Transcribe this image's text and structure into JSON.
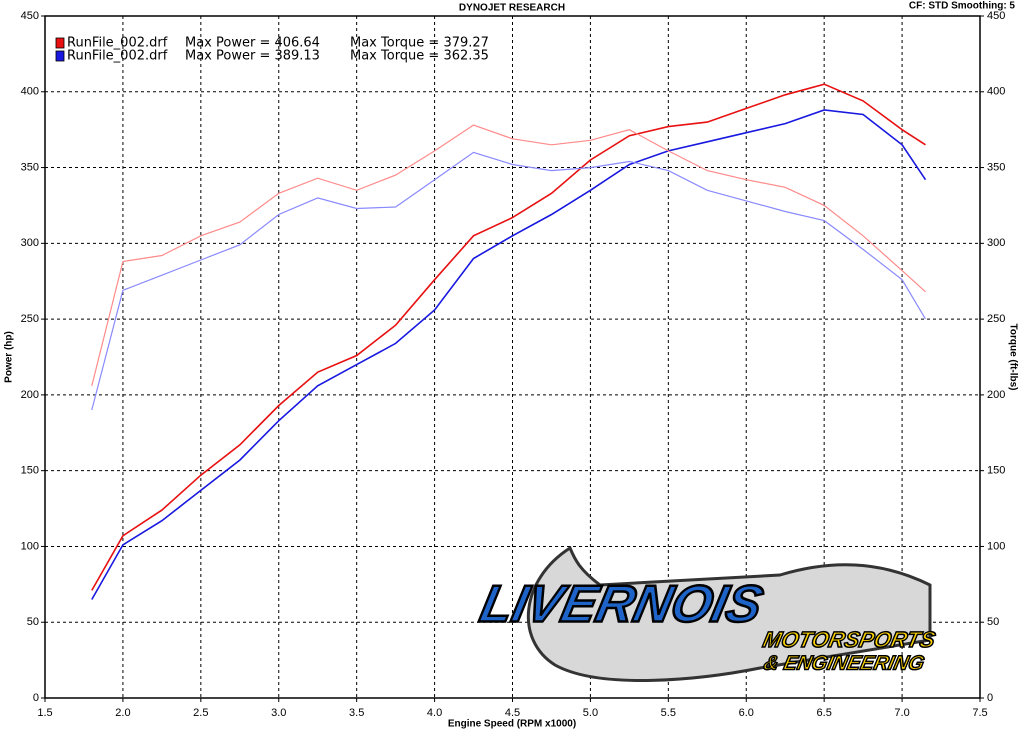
{
  "chart_data": {
    "type": "line",
    "title": "DYNOJET RESEARCH",
    "subtitle": "CF: STD  Smoothing: 5",
    "xlabel": "Engine Speed (RPM x1000)",
    "ylabel": "Power (hp)",
    "y2label": "Torque (ft-lbs)",
    "legend": [
      {
        "file": "RunFile_002.drf",
        "power": "Max Power = 406.64",
        "torque": "Max Torque = 379.27",
        "color": "#e81010"
      },
      {
        "file": "RunFile_002.drf",
        "power": "Max Power = 389.13",
        "torque": "Max Torque = 362.35",
        "color": "#1818e0"
      }
    ],
    "logo": {
      "brand": "LIVERNOIS",
      "line1": "MOTORSPORTS",
      "line2": "& ENGINEERING"
    },
    "x": [
      1.8,
      2.0,
      2.25,
      2.5,
      2.75,
      3.0,
      3.25,
      3.5,
      3.75,
      4.0,
      4.25,
      4.5,
      4.75,
      5.0,
      5.25,
      5.5,
      5.75,
      6.0,
      6.25,
      6.5,
      6.75,
      7.0,
      7.15
    ],
    "series": [
      {
        "color": "#e81010",
        "values": [
          71,
          107,
          124,
          147,
          167,
          193,
          215,
          226,
          246,
          276,
          305,
          317,
          333,
          355,
          371,
          377,
          380,
          389,
          398,
          405,
          394,
          375,
          365
        ]
      },
      {
        "color": "#1818e0",
        "values": [
          65,
          101,
          117,
          137,
          157,
          183,
          206,
          220,
          234,
          256,
          290,
          305,
          319,
          335,
          352,
          361,
          367,
          373,
          379,
          388,
          385,
          365,
          342
        ]
      },
      {
        "color": "#ff8a8a",
        "axis": "y2",
        "values": [
          206,
          288,
          292,
          305,
          314,
          333,
          343,
          335,
          345,
          361,
          378,
          369,
          365,
          368,
          375,
          361,
          348,
          342,
          337,
          325,
          305,
          282,
          268
        ]
      },
      {
        "color": "#8a8aff",
        "axis": "y2",
        "values": [
          190,
          269,
          279,
          289,
          299,
          319,
          330,
          323,
          324,
          342,
          360,
          352,
          348,
          350,
          354,
          348,
          335,
          328,
          321,
          315,
          296,
          276,
          250
        ]
      }
    ],
    "xlim": [
      1.5,
      7.5
    ],
    "xticks": [
      1.5,
      {
        "value": 2,
        "label": "2.0"
      },
      2.5,
      {
        "value": 3,
        "label": "3.0"
      },
      3.5,
      {
        "value": 4,
        "label": "4.0"
      },
      4.5,
      {
        "value": 5,
        "label": "5.0"
      },
      5.5,
      {
        "value": 6,
        "label": "6.0"
      },
      6.5,
      {
        "value": 7,
        "label": "7.0"
      },
      7.5
    ],
    "ylim": [
      0,
      450
    ],
    "yticks": [
      0,
      50,
      100,
      150,
      200,
      250,
      300,
      350,
      400,
      450
    ],
    "y2lim": [
      0,
      450
    ],
    "y2ticks": [
      0,
      50,
      100,
      150,
      200,
      250,
      300,
      350,
      400,
      450
    ],
    "grid": true
  }
}
